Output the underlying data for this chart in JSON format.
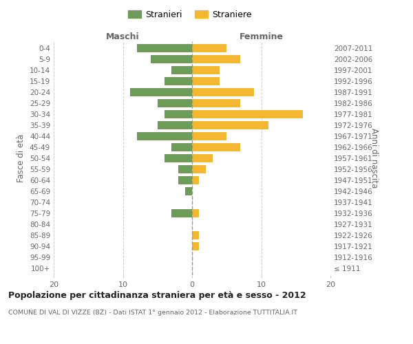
{
  "age_groups": [
    "100+",
    "95-99",
    "90-94",
    "85-89",
    "80-84",
    "75-79",
    "70-74",
    "65-69",
    "60-64",
    "55-59",
    "50-54",
    "45-49",
    "40-44",
    "35-39",
    "30-34",
    "25-29",
    "20-24",
    "15-19",
    "10-14",
    "5-9",
    "0-4"
  ],
  "birth_years": [
    "≤ 1911",
    "1912-1916",
    "1917-1921",
    "1922-1926",
    "1927-1931",
    "1932-1936",
    "1937-1941",
    "1942-1946",
    "1947-1951",
    "1952-1956",
    "1957-1961",
    "1962-1966",
    "1967-1971",
    "1972-1976",
    "1977-1981",
    "1982-1986",
    "1987-1991",
    "1992-1996",
    "1997-2001",
    "2002-2006",
    "2007-2011"
  ],
  "maschi": [
    0,
    0,
    0,
    0,
    0,
    3,
    0,
    1,
    2,
    2,
    4,
    3,
    8,
    5,
    4,
    5,
    9,
    4,
    3,
    6,
    8
  ],
  "femmine": [
    0,
    0,
    1,
    1,
    0,
    1,
    0,
    0,
    1,
    2,
    3,
    7,
    5,
    11,
    16,
    7,
    9,
    4,
    4,
    7,
    5
  ],
  "male_color": "#6d9b5a",
  "female_color": "#f5b731",
  "title": "Popolazione per cittadinanza straniera per età e sesso - 2012",
  "subtitle": "COMUNE DI VAL DI VIZZE (BZ) - Dati ISTAT 1° gennaio 2012 - Elaborazione TUTTITALIA.IT",
  "xlabel_left": "Maschi",
  "xlabel_right": "Femmine",
  "ylabel_left": "Fasce di età",
  "ylabel_right": "Anni di nascita",
  "legend_male": "Stranieri",
  "legend_female": "Straniere",
  "xlim": 20,
  "background_color": "#ffffff",
  "grid_color": "#cccccc"
}
